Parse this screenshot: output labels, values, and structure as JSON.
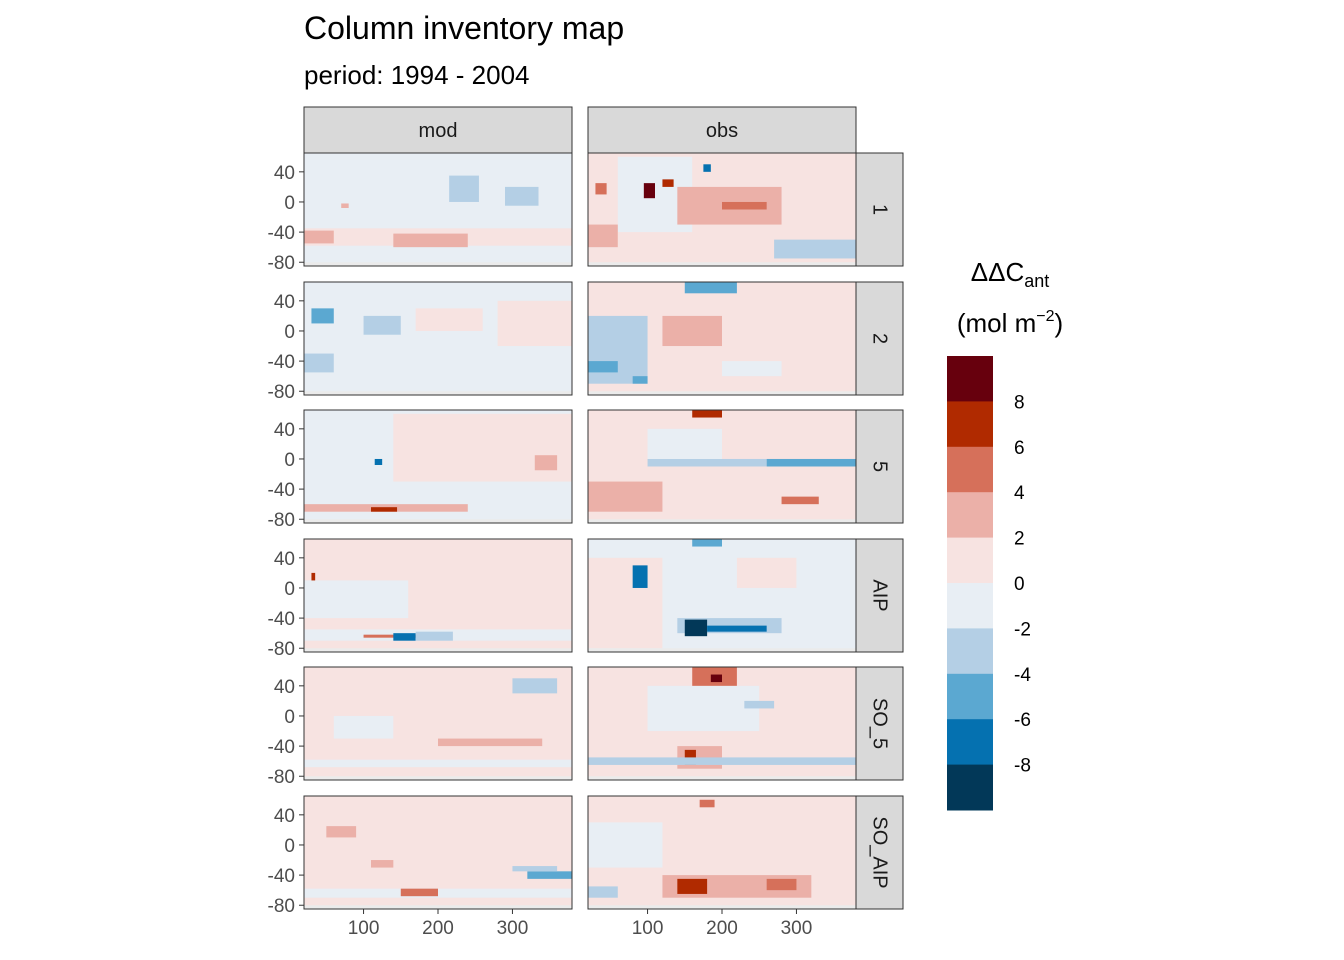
{
  "chart_data": {
    "type": "heatmap",
    "title": "Column inventory map",
    "subtitle": "period: 1994 - 2004",
    "facet_columns": [
      "mod",
      "obs"
    ],
    "facet_rows": [
      "1",
      "2",
      "5",
      "AIP",
      "SO_5",
      "SO_AIP"
    ],
    "x_ticks": [
      "100",
      "200",
      "300"
    ],
    "x_tick_values": [
      100,
      200,
      300
    ],
    "xlim": [
      20,
      380
    ],
    "y_ticks": [
      "40",
      "0",
      "-40",
      "-80"
    ],
    "y_tick_values": [
      40,
      0,
      -40,
      -80
    ],
    "ylim": [
      -85,
      65
    ],
    "xlabel": "",
    "ylabel": "",
    "legend": {
      "title_line1": "ΔΔC",
      "title_sub": "ant",
      "title_line2_pre": "(mol m",
      "title_sup": "−2",
      "title_line2_post": ")",
      "position": "right",
      "bins": [
        {
          "range": [
            8,
            10
          ],
          "color": "#67000D"
        },
        {
          "range": [
            6,
            8
          ],
          "color": "#B02A00"
        },
        {
          "range": [
            4,
            6
          ],
          "color": "#D6705A"
        },
        {
          "range": [
            2,
            4
          ],
          "color": "#EBB0A8"
        },
        {
          "range": [
            0,
            2
          ],
          "color": "#F7E3E1"
        },
        {
          "range": [
            -2,
            0
          ],
          "color": "#E8EEF4"
        },
        {
          "range": [
            -4,
            -2
          ],
          "color": "#B4CFE5"
        },
        {
          "range": [
            -6,
            -4
          ],
          "color": "#5BA8D1"
        },
        {
          "range": [
            -8,
            -6
          ],
          "color": "#0571B0"
        },
        {
          "range": [
            -10,
            -8
          ],
          "color": "#023858"
        }
      ],
      "labels": [
        "8",
        "6",
        "4",
        "2",
        "0",
        "-2",
        "-4",
        "-6",
        "-8"
      ]
    },
    "panels": {
      "mod": {
        "1": [
          {
            "lon": [
              20,
              380
            ],
            "lat": [
              -80,
              65
            ],
            "v": -1
          },
          {
            "lon": [
              20,
              140
            ],
            "lat": [
              -30,
              0
            ],
            "v": -1
          },
          {
            "lon": [
              20,
              380
            ],
            "lat": [
              -58,
              -35
            ],
            "v": 1
          },
          {
            "lon": [
              20,
              60
            ],
            "lat": [
              -55,
              -38
            ],
            "v": 3
          },
          {
            "lon": [
              140,
              240
            ],
            "lat": [
              -60,
              -42
            ],
            "v": 3
          },
          {
            "lon": [
              215,
              255
            ],
            "lat": [
              0,
              35
            ],
            "v": -3
          },
          {
            "lon": [
              290,
              335
            ],
            "lat": [
              -5,
              20
            ],
            "v": -3
          },
          {
            "lon": [
              70,
              80
            ],
            "lat": [
              -8,
              -2
            ],
            "v": 3
          }
        ],
        "2": [
          {
            "lon": [
              20,
              380
            ],
            "lat": [
              -80,
              65
            ],
            "v": -1
          },
          {
            "lon": [
              170,
              260
            ],
            "lat": [
              0,
              30
            ],
            "v": 1
          },
          {
            "lon": [
              280,
              380
            ],
            "lat": [
              -20,
              40
            ],
            "v": 1
          },
          {
            "lon": [
              30,
              60
            ],
            "lat": [
              10,
              30
            ],
            "v": -5
          },
          {
            "lon": [
              100,
              150
            ],
            "lat": [
              -5,
              20
            ],
            "v": -3
          },
          {
            "lon": [
              20,
              60
            ],
            "lat": [
              -55,
              -30
            ],
            "v": -3
          }
        ],
        "5": [
          {
            "lon": [
              20,
              380
            ],
            "lat": [
              -80,
              65
            ],
            "v": -1
          },
          {
            "lon": [
              140,
              380
            ],
            "lat": [
              -30,
              60
            ],
            "v": 1
          },
          {
            "lon": [
              330,
              360
            ],
            "lat": [
              -15,
              5
            ],
            "v": 3
          },
          {
            "lon": [
              20,
              240
            ],
            "lat": [
              -70,
              -60
            ],
            "v": 3
          },
          {
            "lon": [
              110,
              145
            ],
            "lat": [
              -70,
              -64
            ],
            "v": 7
          },
          {
            "lon": [
              115,
              125
            ],
            "lat": [
              -8,
              0
            ],
            "v": -7
          }
        ],
        "AIP": [
          {
            "lon": [
              20,
              380
            ],
            "lat": [
              -80,
              65
            ],
            "v": 1
          },
          {
            "lon": [
              20,
              160
            ],
            "lat": [
              -40,
              10
            ],
            "v": -1
          },
          {
            "lon": [
              20,
              380
            ],
            "lat": [
              -70,
              -55
            ],
            "v": -1
          },
          {
            "lon": [
              100,
              190
            ],
            "lat": [
              -66,
              -62
            ],
            "v": 5
          },
          {
            "lon": [
              140,
              170
            ],
            "lat": [
              -70,
              -60
            ],
            "v": -7
          },
          {
            "lon": [
              170,
              220
            ],
            "lat": [
              -70,
              -58
            ],
            "v": -3
          },
          {
            "lon": [
              30,
              35
            ],
            "lat": [
              10,
              20
            ],
            "v": 7
          }
        ],
        "SO_5": [
          {
            "lon": [
              20,
              380
            ],
            "lat": [
              -80,
              65
            ],
            "v": 1
          },
          {
            "lon": [
              20,
              380
            ],
            "lat": [
              -68,
              -58
            ],
            "v": -1
          },
          {
            "lon": [
              60,
              140
            ],
            "lat": [
              -30,
              0
            ],
            "v": -1
          },
          {
            "lon": [
              300,
              360
            ],
            "lat": [
              30,
              50
            ],
            "v": -3
          },
          {
            "lon": [
              200,
              340
            ],
            "lat": [
              -40,
              -30
            ],
            "v": 3
          }
        ],
        "SO_AIP": [
          {
            "lon": [
              20,
              380
            ],
            "lat": [
              -80,
              65
            ],
            "v": 1
          },
          {
            "lon": [
              20,
              380
            ],
            "lat": [
              -70,
              -58
            ],
            "v": -1
          },
          {
            "lon": [
              150,
              200
            ],
            "lat": [
              -68,
              -58
            ],
            "v": 5
          },
          {
            "lon": [
              320,
              380
            ],
            "lat": [
              -45,
              -35
            ],
            "v": -5
          },
          {
            "lon": [
              300,
              360
            ],
            "lat": [
              -35,
              -28
            ],
            "v": -3
          },
          {
            "lon": [
              50,
              90
            ],
            "lat": [
              10,
              25
            ],
            "v": 3
          },
          {
            "lon": [
              110,
              140
            ],
            "lat": [
              -30,
              -20
            ],
            "v": 3
          }
        ]
      },
      "obs": {
        "1": [
          {
            "lon": [
              20,
              380
            ],
            "lat": [
              -80,
              65
            ],
            "v": 1
          },
          {
            "lon": [
              60,
              160
            ],
            "lat": [
              -40,
              60
            ],
            "v": -1
          },
          {
            "lon": [
              140,
              280
            ],
            "lat": [
              -30,
              20
            ],
            "v": 3
          },
          {
            "lon": [
              200,
              260
            ],
            "lat": [
              -10,
              0
            ],
            "v": 5
          },
          {
            "lon": [
              20,
              60
            ],
            "lat": [
              -60,
              -30
            ],
            "v": 3
          },
          {
            "lon": [
              95,
              110
            ],
            "lat": [
              5,
              25
            ],
            "v": 9
          },
          {
            "lon": [
              120,
              135
            ],
            "lat": [
              20,
              30
            ],
            "v": 7
          },
          {
            "lon": [
              30,
              45
            ],
            "lat": [
              10,
              25
            ],
            "v": 5
          },
          {
            "lon": [
              270,
              380
            ],
            "lat": [
              -75,
              -50
            ],
            "v": -3
          },
          {
            "lon": [
              175,
              185
            ],
            "lat": [
              40,
              50
            ],
            "v": -7
          }
        ],
        "2": [
          {
            "lon": [
              20,
              380
            ],
            "lat": [
              -80,
              65
            ],
            "v": 1
          },
          {
            "lon": [
              20,
              100
            ],
            "lat": [
              -70,
              20
            ],
            "v": -3
          },
          {
            "lon": [
              120,
              200
            ],
            "lat": [
              -20,
              20
            ],
            "v": 3
          },
          {
            "lon": [
              150,
              220
            ],
            "lat": [
              50,
              65
            ],
            "v": -5
          },
          {
            "lon": [
              20,
              60
            ],
            "lat": [
              -55,
              -40
            ],
            "v": -5
          },
          {
            "lon": [
              80,
              100
            ],
            "lat": [
              -70,
              -60
            ],
            "v": -5
          },
          {
            "lon": [
              260,
              380
            ],
            "lat": [
              -40,
              60
            ],
            "v": 1
          },
          {
            "lon": [
              200,
              280
            ],
            "lat": [
              -60,
              -40
            ],
            "v": -1
          }
        ],
        "5": [
          {
            "lon": [
              20,
              380
            ],
            "lat": [
              -80,
              65
            ],
            "v": 1
          },
          {
            "lon": [
              100,
              260
            ],
            "lat": [
              -10,
              0
            ],
            "v": -3
          },
          {
            "lon": [
              260,
              380
            ],
            "lat": [
              -10,
              0
            ],
            "v": -5
          },
          {
            "lon": [
              100,
              200
            ],
            "lat": [
              0,
              40
            ],
            "v": -1
          },
          {
            "lon": [
              160,
              200
            ],
            "lat": [
              55,
              65
            ],
            "v": 7
          },
          {
            "lon": [
              20,
              120
            ],
            "lat": [
              -70,
              -30
            ],
            "v": 3
          },
          {
            "lon": [
              280,
              330
            ],
            "lat": [
              -60,
              -50
            ],
            "v": 5
          }
        ],
        "AIP": [
          {
            "lon": [
              20,
              380
            ],
            "lat": [
              -80,
              65
            ],
            "v": -1
          },
          {
            "lon": [
              20,
              120
            ],
            "lat": [
              -80,
              40
            ],
            "v": 1
          },
          {
            "lon": [
              140,
              280
            ],
            "lat": [
              -60,
              -40
            ],
            "v": -3
          },
          {
            "lon": [
              150,
              180
            ],
            "lat": [
              -64,
              -42
            ],
            "v": -9
          },
          {
            "lon": [
              180,
              260
            ],
            "lat": [
              -58,
              -50
            ],
            "v": -7
          },
          {
            "lon": [
              80,
              100
            ],
            "lat": [
              0,
              30
            ],
            "v": -7
          },
          {
            "lon": [
              160,
              200
            ],
            "lat": [
              55,
              65
            ],
            "v": -5
          },
          {
            "lon": [
              220,
              300
            ],
            "lat": [
              0,
              40
            ],
            "v": 1
          }
        ],
        "SO_5": [
          {
            "lon": [
              20,
              380
            ],
            "lat": [
              -80,
              65
            ],
            "v": 1
          },
          {
            "lon": [
              100,
              250
            ],
            "lat": [
              -20,
              40
            ],
            "v": -1
          },
          {
            "lon": [
              160,
              220
            ],
            "lat": [
              40,
              65
            ],
            "v": 5
          },
          {
            "lon": [
              185,
              200
            ],
            "lat": [
              45,
              55
            ],
            "v": 9
          },
          {
            "lon": [
              140,
              200
            ],
            "lat": [
              -70,
              -40
            ],
            "v": 3
          },
          {
            "lon": [
              150,
              165
            ],
            "lat": [
              -65,
              -45
            ],
            "v": 7
          },
          {
            "lon": [
              20,
              380
            ],
            "lat": [
              -65,
              -55
            ],
            "v": -3
          },
          {
            "lon": [
              230,
              270
            ],
            "lat": [
              10,
              20
            ],
            "v": -3
          }
        ],
        "SO_AIP": [
          {
            "lon": [
              20,
              380
            ],
            "lat": [
              -80,
              65
            ],
            "v": 1
          },
          {
            "lon": [
              20,
              120
            ],
            "lat": [
              -30,
              30
            ],
            "v": -1
          },
          {
            "lon": [
              120,
              320
            ],
            "lat": [
              -70,
              -40
            ],
            "v": 3
          },
          {
            "lon": [
              140,
              180
            ],
            "lat": [
              -65,
              -45
            ],
            "v": 7
          },
          {
            "lon": [
              260,
              300
            ],
            "lat": [
              -60,
              -45
            ],
            "v": 5
          },
          {
            "lon": [
              20,
              60
            ],
            "lat": [
              -70,
              -55
            ],
            "v": -3
          },
          {
            "lon": [
              170,
              190
            ],
            "lat": [
              50,
              60
            ],
            "v": 5
          }
        ]
      }
    }
  }
}
